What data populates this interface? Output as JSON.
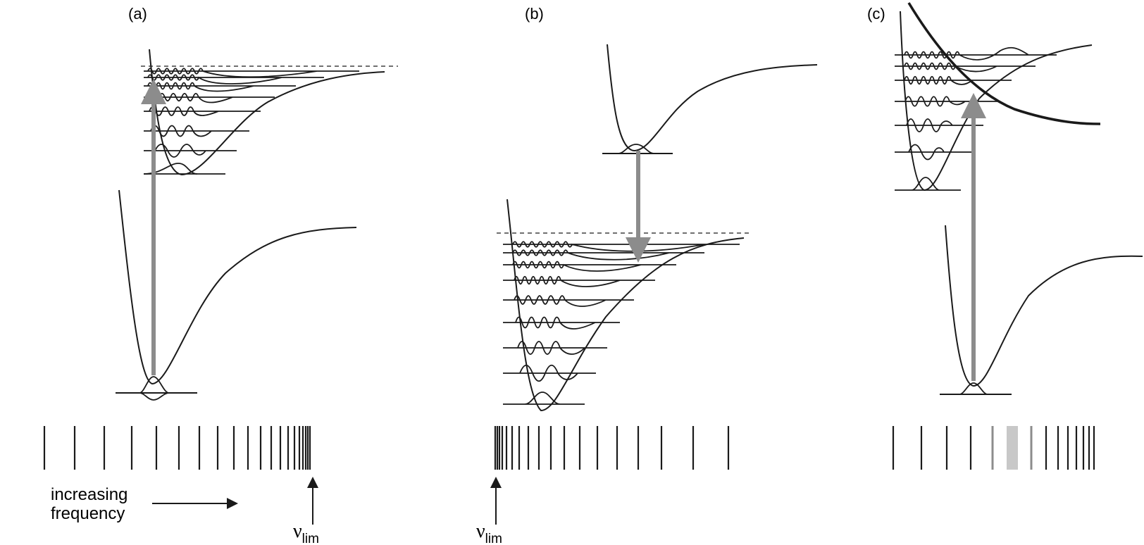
{
  "panels": [
    {
      "label": "(a)",
      "limit_symbol": "ν",
      "limit_subscript": "lim"
    },
    {
      "label": "(b)",
      "limit_symbol": "ν",
      "limit_subscript": "lim"
    },
    {
      "label": "(c)"
    }
  ],
  "annotation": {
    "line1": "increasing",
    "line2": "frequency"
  },
  "colors": {
    "line": "#1a1a1a",
    "arrow": "#8c8c8c",
    "broadened": "#c8c8c8",
    "dashed": "#1a1a1a"
  }
}
